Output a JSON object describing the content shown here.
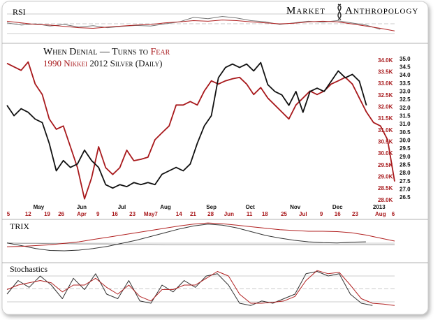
{
  "brand": {
    "left": "Market",
    "right": "Anthropology"
  },
  "chart_data": [
    {
      "type": "line",
      "title": "When Denial — Turns to",
      "title_emphasis": "Fear",
      "xlim": [
        0,
        55
      ],
      "xticks": [
        {
          "value": 4.5,
          "label": "May"
        },
        {
          "value": 10.6,
          "label": "Jun"
        },
        {
          "value": 16.3,
          "label": "Jul"
        },
        {
          "value": 22.5,
          "label": "Aug"
        },
        {
          "value": 29,
          "label": "Sep"
        },
        {
          "value": 34.5,
          "label": "Oct"
        },
        {
          "value": 40.9,
          "label": "Nov"
        },
        {
          "value": 46.9,
          "label": "Dec"
        },
        {
          "value": 52.8,
          "label": "2013"
        }
      ],
      "x2ticks": [
        {
          "value": 0.2,
          "label": "5"
        },
        {
          "value": 3,
          "label": "12"
        },
        {
          "value": 5.7,
          "label": "19"
        },
        {
          "value": 7.7,
          "label": "26"
        },
        {
          "value": 10.6,
          "label": "Apr"
        },
        {
          "value": 12.9,
          "label": "9"
        },
        {
          "value": 15.3,
          "label": "16"
        },
        {
          "value": 17.8,
          "label": "23"
        },
        {
          "value": 20.4,
          "label": "May7"
        },
        {
          "value": 24.4,
          "label": "14"
        },
        {
          "value": 26.4,
          "label": "21"
        },
        {
          "value": 28.9,
          "label": "28"
        },
        {
          "value": 31.5,
          "label": "Jun"
        },
        {
          "value": 34.4,
          "label": "11"
        },
        {
          "value": 36.6,
          "label": "18"
        },
        {
          "value": 39.3,
          "label": "25"
        },
        {
          "value": 42,
          "label": "Jul"
        },
        {
          "value": 44.6,
          "label": "9"
        },
        {
          "value": 46.9,
          "label": "16"
        },
        {
          "value": 49.4,
          "label": "23"
        },
        {
          "value": 53,
          "label": "Aug"
        },
        {
          "value": 54.8,
          "label": "6"
        }
      ],
      "ylim": [
        26.2,
        35.2
      ],
      "yticks": [
        26.5,
        {
          "value": 27,
          "label": "27.0"
        },
        27.5,
        {
          "value": 28,
          "label": "28.0"
        },
        28.5,
        {
          "value": 29,
          "label": "29.0"
        },
        29.5,
        {
          "value": 30,
          "label": "30.0"
        },
        30.5,
        {
          "value": 31,
          "label": "31.0"
        },
        31.5,
        {
          "value": 32,
          "label": "32.0"
        },
        32.5,
        {
          "value": 33,
          "label": "33.0"
        },
        33.5,
        {
          "value": 34,
          "label": "34.0"
        },
        34.5,
        {
          "value": 35,
          "label": "35.0"
        }
      ],
      "y2lim": [
        27900,
        34200
      ],
      "y2ticks": [
        {
          "value": 28000,
          "label": "28.0K"
        },
        {
          "value": 28500,
          "label": "28.5K"
        },
        {
          "value": 29000,
          "label": "29.0K"
        },
        {
          "value": 29500,
          "label": "29.5K"
        },
        {
          "value": 30000,
          "label": "30.0K"
        },
        {
          "value": 30500,
          "label": "30.5K"
        },
        {
          "value": 31000,
          "label": "31.0K"
        },
        {
          "value": 31500,
          "label": "31.5K"
        },
        {
          "value": 32000,
          "label": "32.0K"
        },
        {
          "value": 32500,
          "label": "32.5K"
        },
        {
          "value": 33000,
          "label": "33.0K"
        },
        {
          "value": 33500,
          "label": "33.5K"
        },
        {
          "value": 34000,
          "label": "34.0K"
        }
      ],
      "series": [
        {
          "name": "1990 Nikkei",
          "color": "#a8191c",
          "axis": "y2",
          "values": [
            33880,
            33730,
            33580,
            33940,
            32990,
            32540,
            31490,
            31050,
            31190,
            30300,
            29400,
            28060,
            28960,
            30300,
            29400,
            29110,
            29400,
            30150,
            29700,
            29760,
            29850,
            30600,
            30900,
            31190,
            32090,
            32090,
            32240,
            32090,
            32690,
            33130,
            32990,
            33130,
            33220,
            33280,
            32990,
            32540,
            32840,
            32390,
            32090,
            31790,
            31490,
            32090,
            32390,
            32690,
            32540,
            32690,
            32990,
            33130,
            33280,
            32990,
            32390,
            31790,
            31340,
            31190,
            30600,
            28810
          ]
        },
        {
          "name": "2012 Silver (Daily)",
          "color": "#111111",
          "values": [
            32.17,
            31.53,
            31.96,
            31.74,
            31.32,
            31.11,
            29.84,
            28.15,
            28.78,
            28.36,
            28.57,
            29.42,
            28.78,
            28.36,
            27.3,
            27.09,
            27.3,
            27.18,
            27.43,
            27.3,
            27.43,
            27.3,
            27.94,
            28.15,
            28.36,
            28.15,
            28.57,
            29.84,
            30.9,
            31.53,
            33.86,
            34.49,
            34.7,
            34.49,
            34.7,
            34.28,
            34.79,
            33.44,
            33.02,
            32.81,
            32.17,
            33.02,
            31.74,
            33.02,
            33.22,
            33.02,
            33.65,
            34.28,
            33.86,
            34.07,
            33.65,
            32.17,
            null,
            null,
            null,
            null
          ]
        }
      ]
    },
    {
      "type": "line",
      "title": "RSI",
      "xlim": [
        0,
        27
      ],
      "ylim": [
        0,
        100
      ],
      "series": [
        {
          "color": "#777777",
          "values": [
            55,
            48,
            52,
            45,
            50,
            42,
            46,
            40,
            44,
            47,
            45,
            52,
            58,
            72,
            68,
            75,
            70,
            62,
            58,
            50,
            55,
            60,
            57,
            62,
            55,
            48,
            35,
            null
          ]
        },
        {
          "color": "#b22222",
          "values": [
            60,
            55,
            50,
            48,
            44,
            40,
            38,
            42,
            45,
            48,
            50,
            55,
            58,
            62,
            60,
            64,
            62,
            58,
            55,
            52,
            54,
            58,
            60,
            58,
            52,
            45,
            38,
            30
          ]
        }
      ]
    },
    {
      "type": "line",
      "title": "TRIX",
      "xlim": [
        0,
        27
      ],
      "ylim": [
        0,
        100
      ],
      "series": [
        {
          "color": "#999999",
          "values": [
            45,
            44,
            44,
            43,
            43,
            42,
            42,
            42,
            41,
            41,
            41,
            40,
            40,
            40,
            40,
            40,
            40,
            40,
            40,
            40,
            40,
            40,
            40,
            40,
            40,
            40,
            40,
            40
          ]
        },
        {
          "color": "#333333",
          "values": [
            45,
            38,
            30,
            25,
            24,
            26,
            30,
            36,
            44,
            52,
            62,
            72,
            82,
            90,
            95,
            92,
            85,
            75,
            65,
            58,
            52,
            48,
            46,
            45,
            47,
            48,
            null,
            null
          ]
        },
        {
          "color": "#b22222",
          "values": [
            35,
            36,
            38,
            40,
            44,
            48,
            54,
            60,
            66,
            72,
            78,
            84,
            90,
            95,
            98,
            96,
            92,
            88,
            84,
            80,
            78,
            76,
            76,
            75,
            72,
            66,
            58,
            50
          ]
        }
      ]
    },
    {
      "type": "line",
      "title": "Stochastics",
      "xlim": [
        0,
        35
      ],
      "ylim": [
        0,
        100
      ],
      "series": [
        {
          "color": "#333333",
          "values": [
            40,
            70,
            55,
            80,
            60,
            30,
            75,
            50,
            85,
            40,
            30,
            70,
            25,
            20,
            60,
            45,
            70,
            55,
            80,
            85,
            60,
            20,
            15,
            25,
            20,
            30,
            40,
            85,
            90,
            80,
            85,
            40,
            20,
            15,
            null,
            null
          ]
        },
        {
          "color": "#b22222",
          "values": [
            50,
            60,
            65,
            70,
            65,
            45,
            60,
            60,
            75,
            55,
            40,
            60,
            35,
            25,
            50,
            50,
            60,
            60,
            75,
            90,
            80,
            40,
            20,
            20,
            22,
            25,
            35,
            70,
            92,
            85,
            88,
            60,
            30,
            20,
            18,
            15
          ]
        }
      ]
    }
  ]
}
